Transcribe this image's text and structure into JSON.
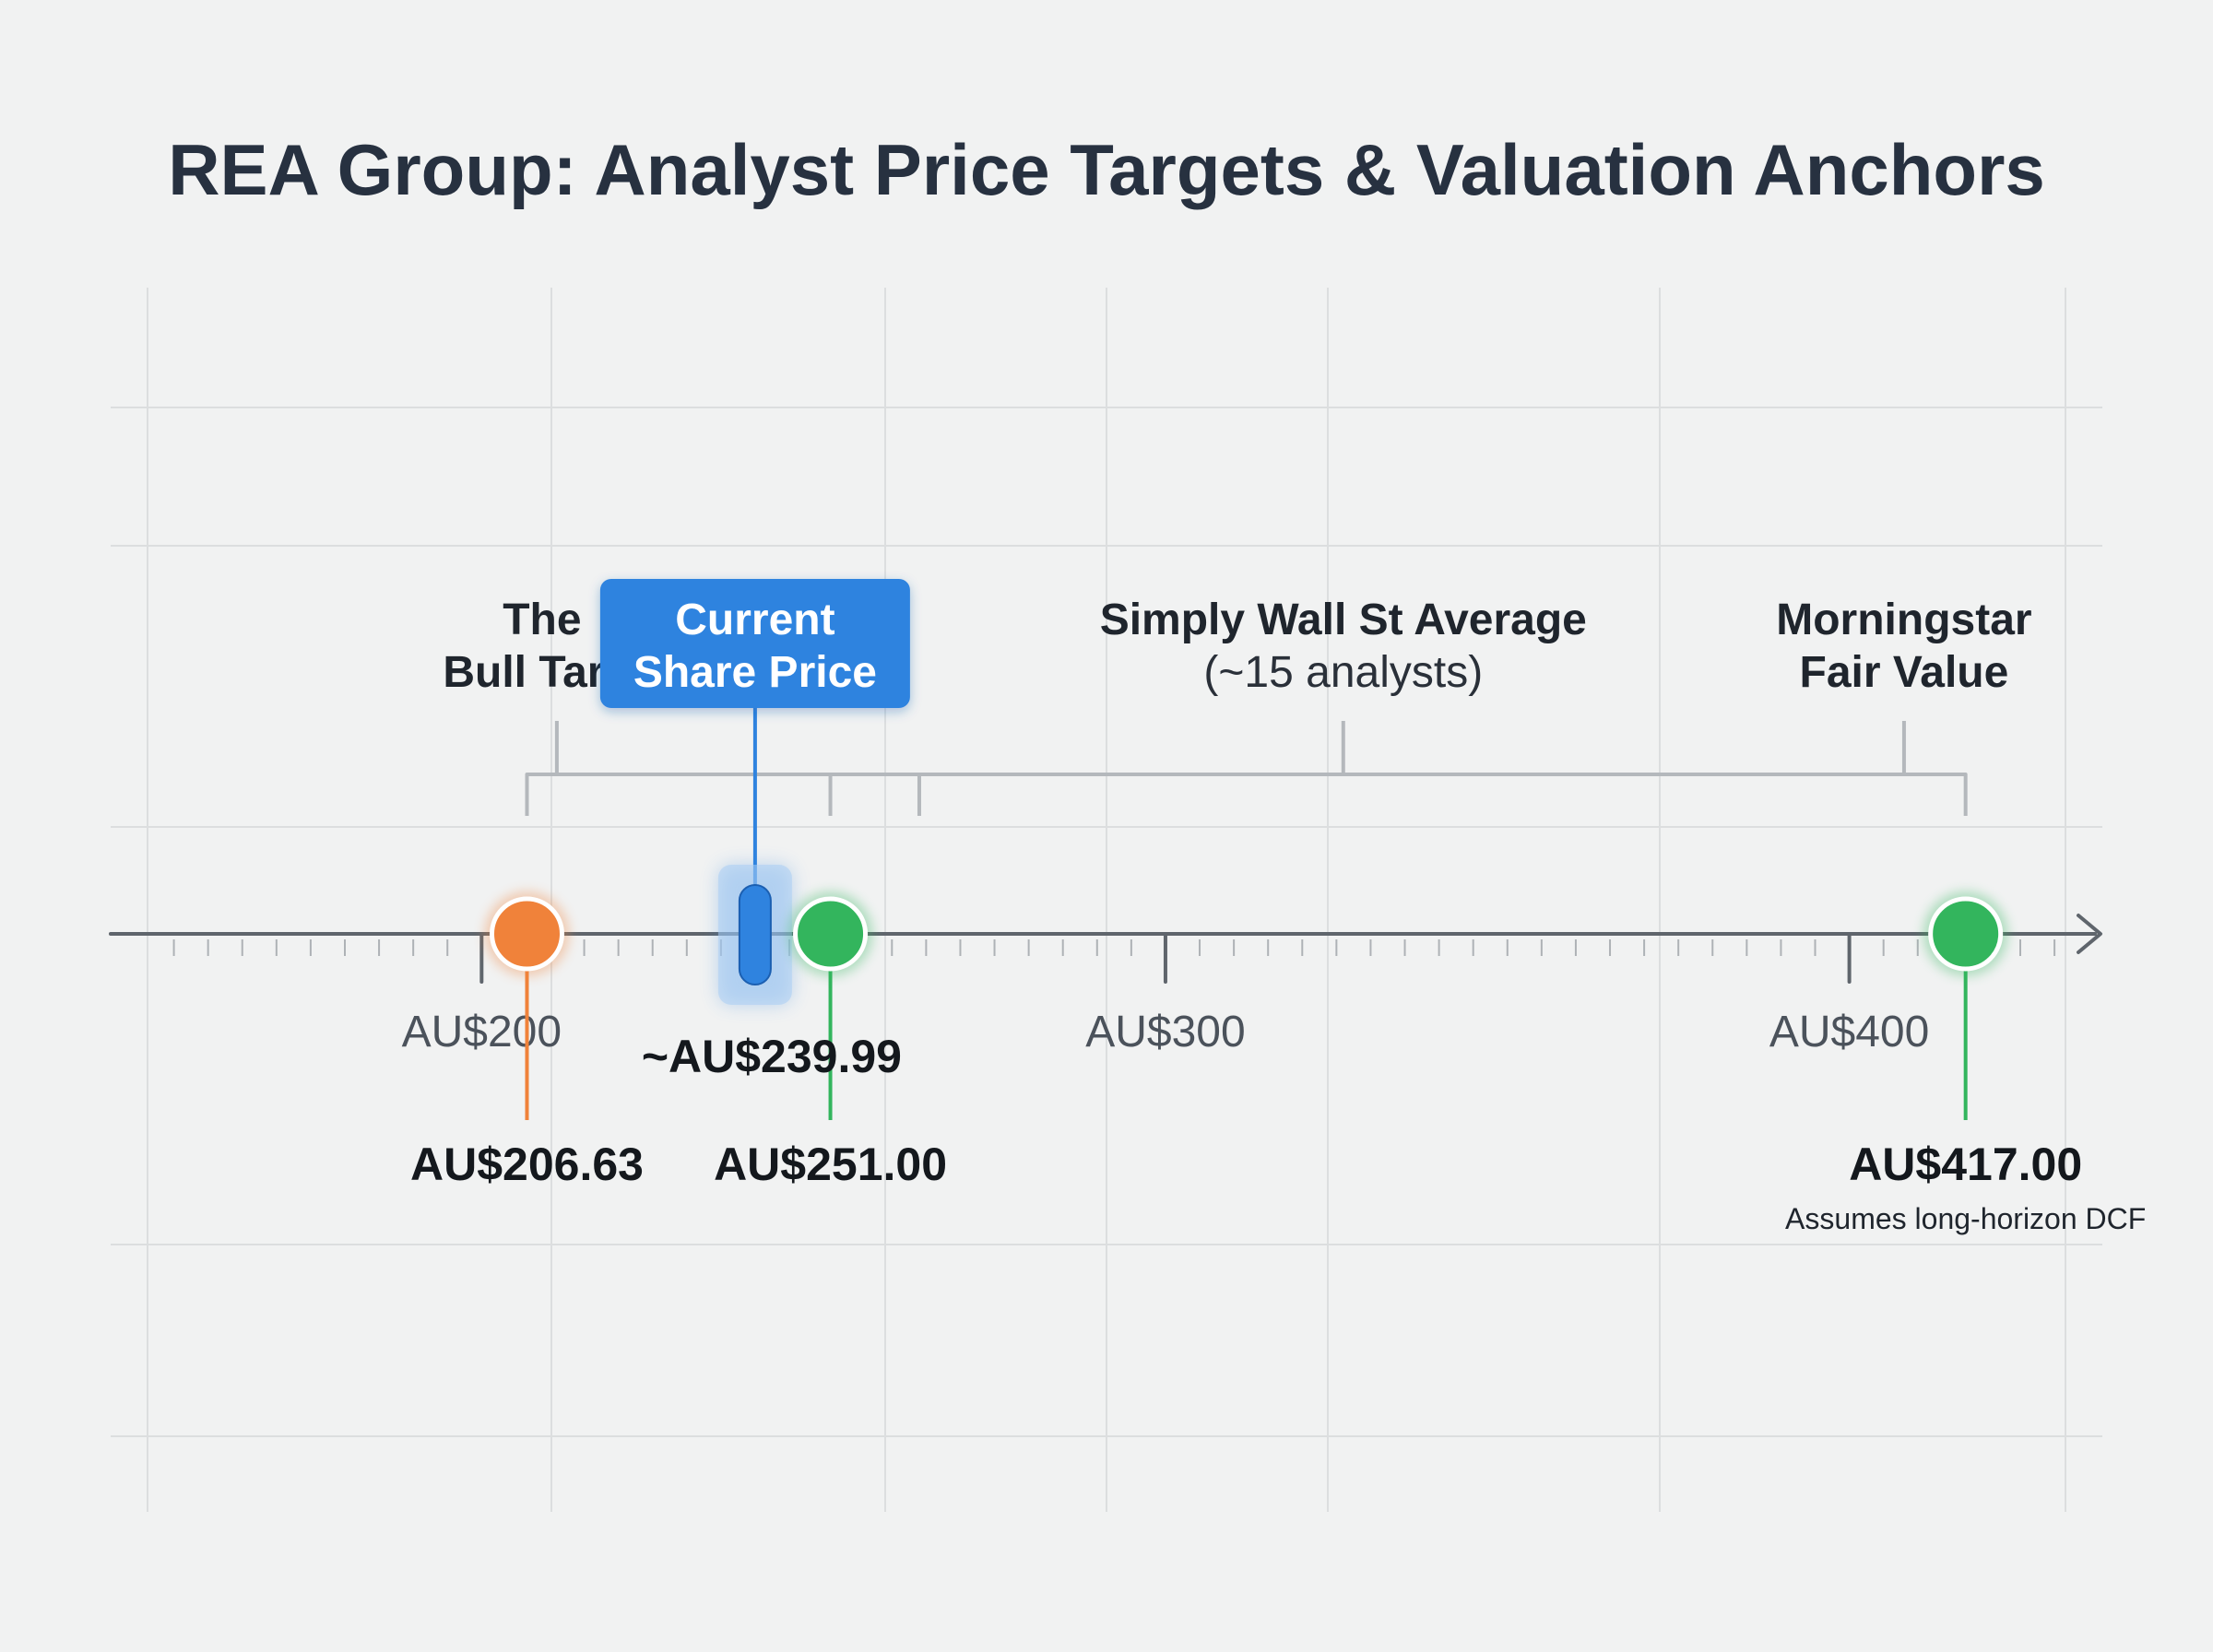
{
  "chart_data": {
    "type": "number-line",
    "title": "REA Group: Analyst Price Targets & Valuation Anchors",
    "xlabel": "",
    "ylabel": "",
    "xlim": [
      144,
      437
    ],
    "grid": true,
    "ticks": [
      {
        "value": 200,
        "label": "AU$200"
      },
      {
        "value": 300,
        "label": "AU$300"
      },
      {
        "value": 400,
        "label": "AU$400"
      }
    ],
    "markers": [
      {
        "id": "bull",
        "value": 206.63,
        "label": "AU$206.63",
        "note": "",
        "color": "#f0823a",
        "kind": "circle"
      },
      {
        "id": "current",
        "value": 239.99,
        "label": "~AU$239.99",
        "note": "",
        "color": "#2f83df",
        "kind": "pill"
      },
      {
        "id": "sws-low",
        "value": 251.0,
        "label": "AU$251.00",
        "note": "",
        "color": "#33b55d",
        "kind": "circle"
      },
      {
        "id": "morningstar",
        "value": 417.0,
        "label": "AU$417.00",
        "note": "Assumes long-horizon DCF",
        "color": "#33b55d",
        "kind": "circle"
      }
    ],
    "groups": [
      {
        "id": "bull-target",
        "lines": [
          "The",
          "Bull Target"
        ],
        "range": [
          206.63,
          264
        ],
        "stem_at": 211
      },
      {
        "id": "current-price",
        "lines": [
          "Current",
          "Share Price"
        ],
        "callout_for": "current"
      },
      {
        "id": "simply-wall-st",
        "lines": [
          "Simply Wall St Average",
          "(~15 analysts)"
        ],
        "range": [
          251.0,
          417.0
        ],
        "stem_at": 326
      },
      {
        "id": "morningstar-fv",
        "lines": [
          "Morningstar",
          "Fair Value"
        ],
        "stem_at": 408
      }
    ]
  }
}
